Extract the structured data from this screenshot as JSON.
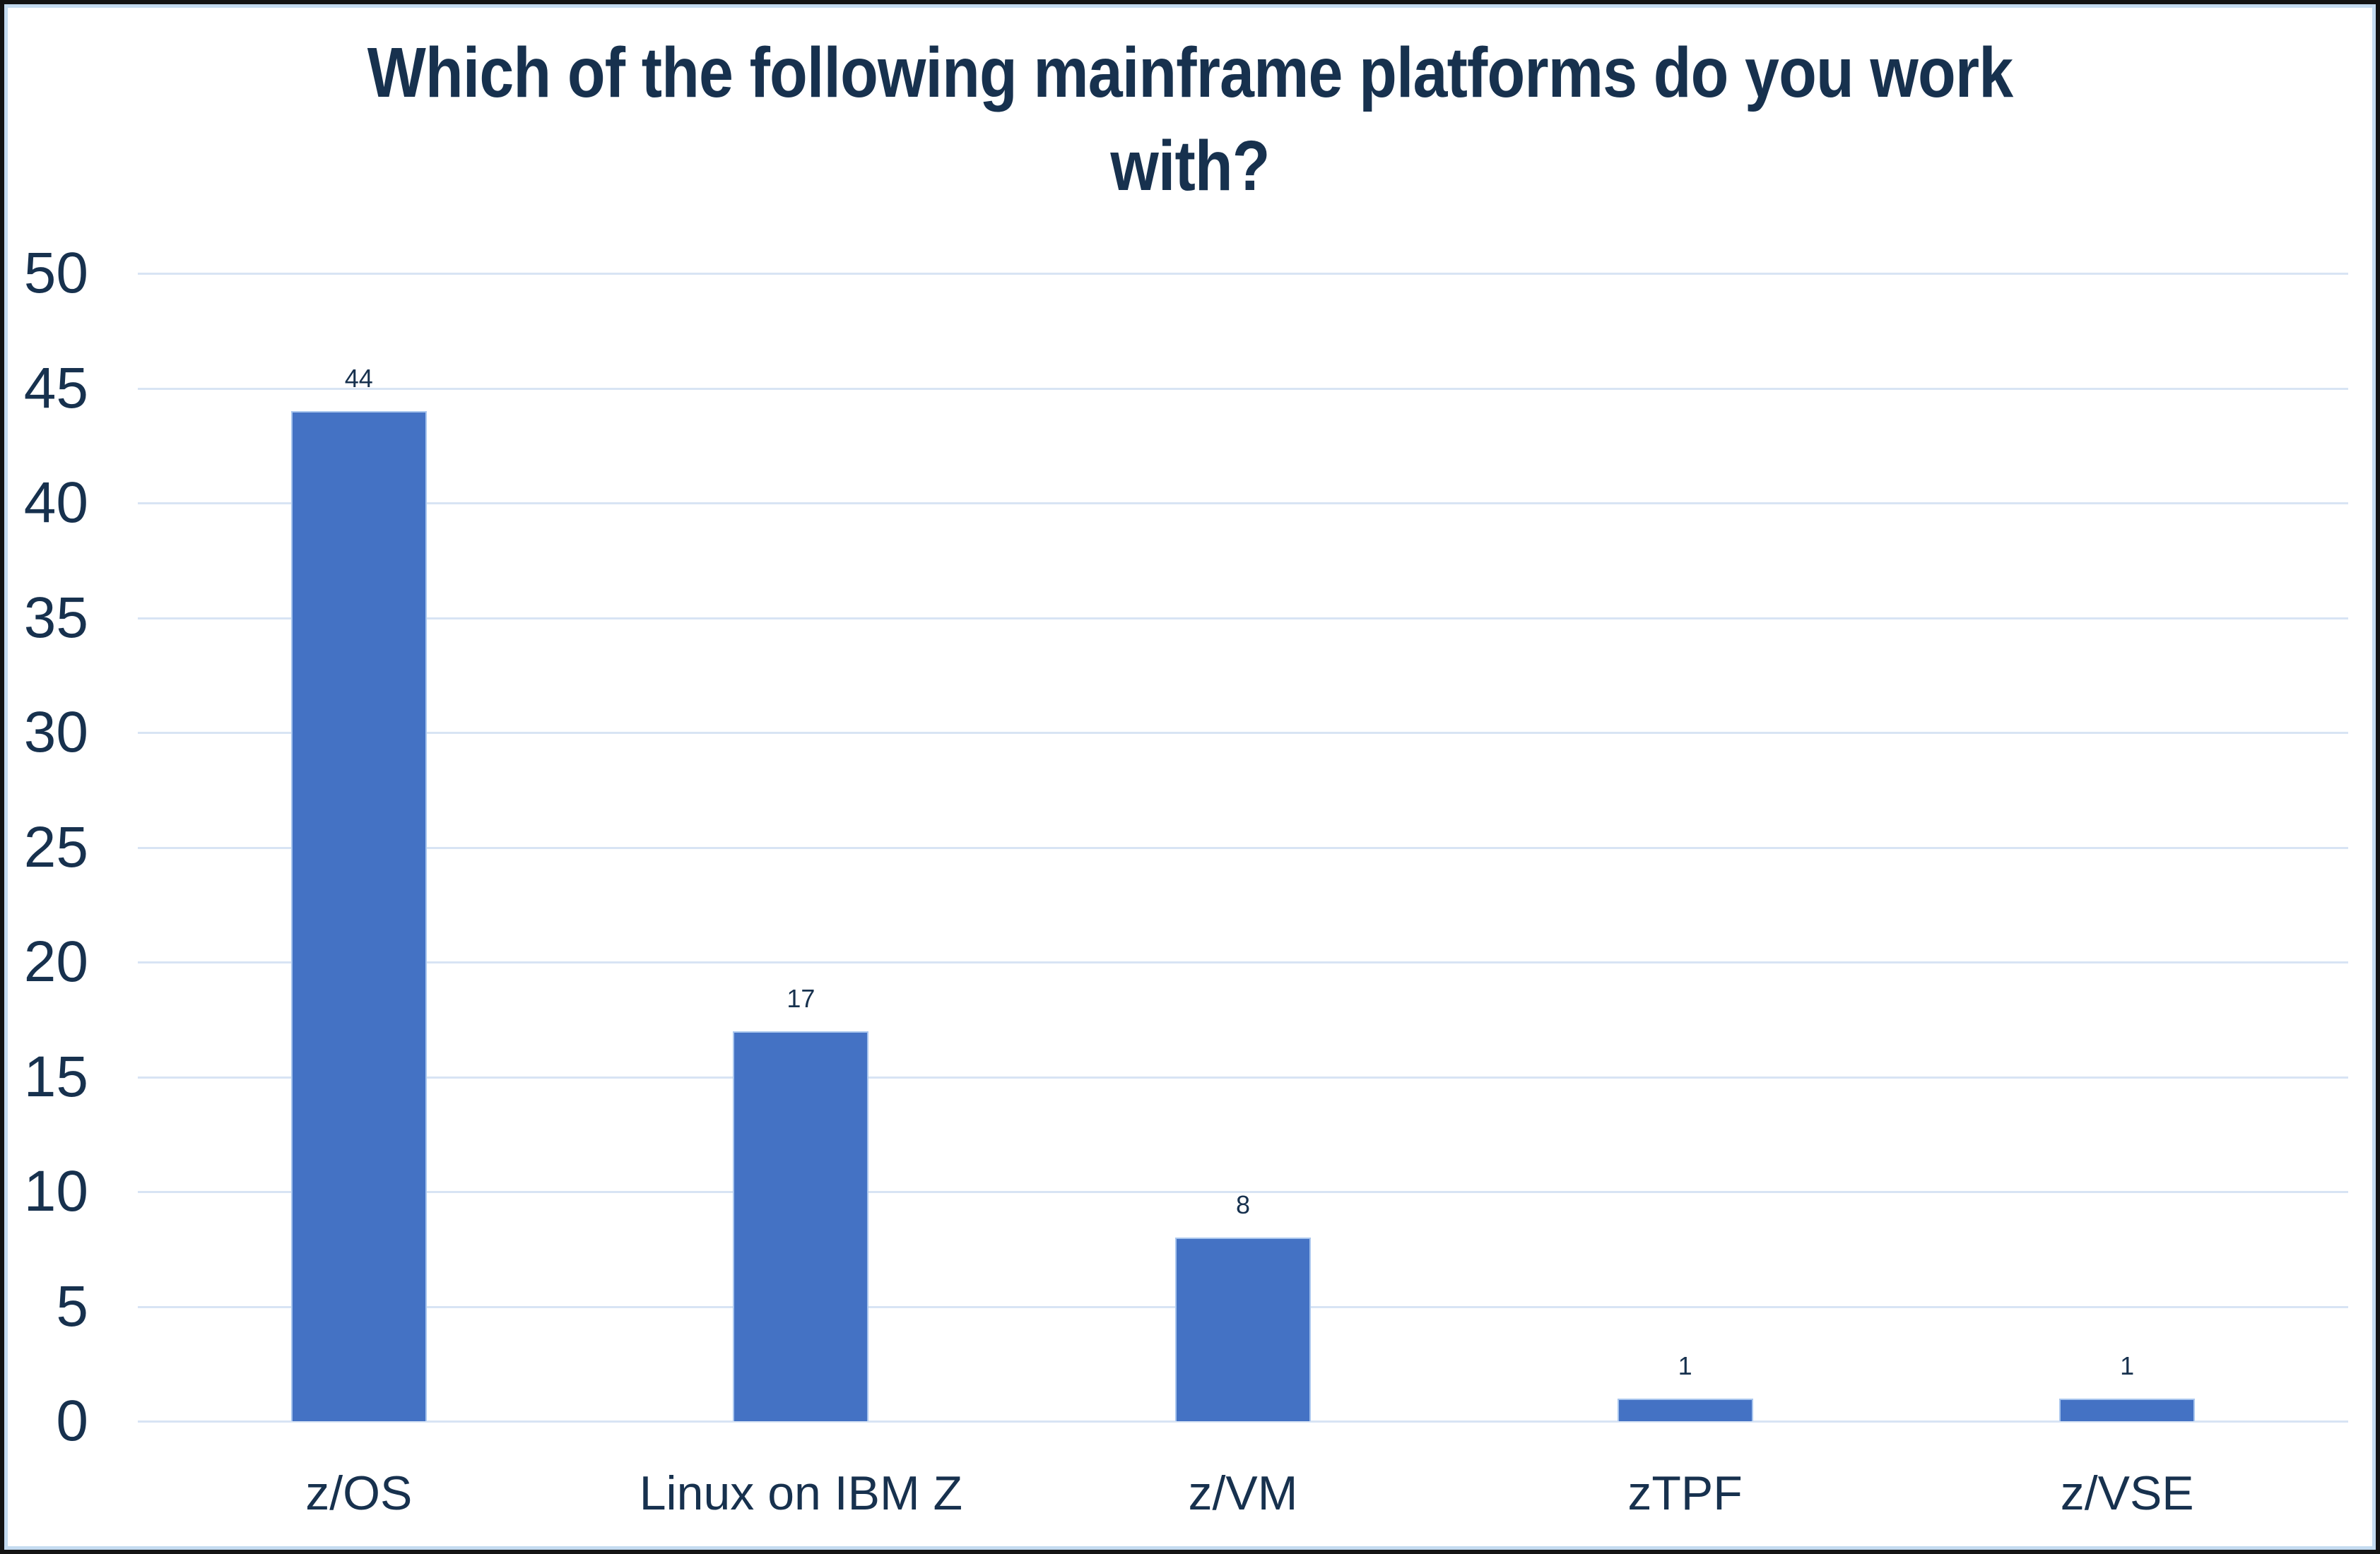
{
  "title_line1": "Which of the following mainframe platforms do you work",
  "title_line2": "with?",
  "chart_data": {
    "type": "bar",
    "title": "Which of the following mainframe platforms do you work with?",
    "categories": [
      "z/OS",
      "Linux on IBM Z",
      "z/VM",
      "zTPF",
      "z/VSE"
    ],
    "values": [
      44,
      17,
      8,
      1,
      1
    ],
    "data_labels_shown": true,
    "xlabel": "",
    "ylabel": "",
    "ylim": [
      0,
      50
    ],
    "yticks": [
      0,
      5,
      10,
      15,
      20,
      25,
      30,
      35,
      40,
      45,
      50
    ],
    "grid": "horizontal",
    "legend_position": "none",
    "colors": {
      "bar_fill": "#4472c4",
      "bar_edge": "#a9c6ee",
      "gridline": "#d8e4f4",
      "text": "#17314e",
      "chart_border": "#c4dbf0",
      "outer_frame": "#141414"
    }
  }
}
